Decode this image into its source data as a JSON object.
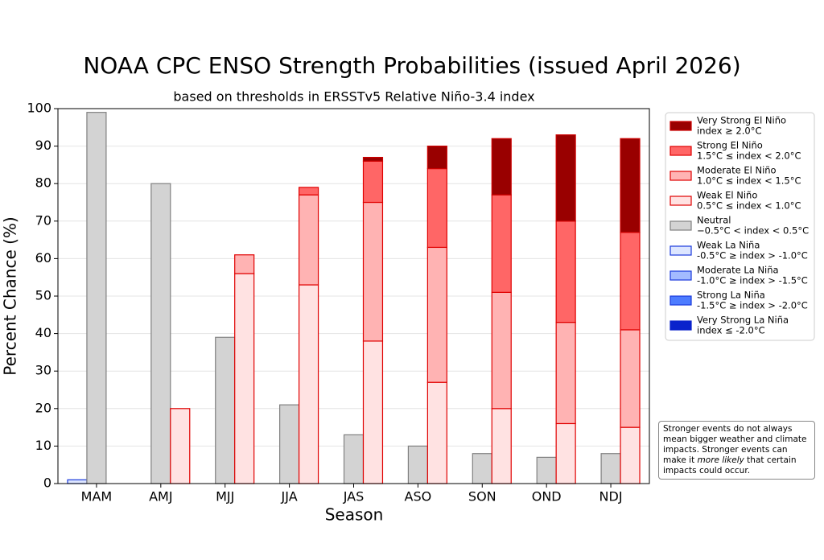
{
  "chart_data": {
    "type": "stacked-grouped-bar",
    "title": "NOAA CPC ENSO Strength Probabilities (issued April 2026)",
    "subtitle": "based on thresholds in ERSSTv5 Relative Niño-3.4 index",
    "x_label": "Season",
    "y_label": "Percent Chance (%)",
    "categories": [
      "MAM",
      "AMJ",
      "MJJ",
      "JJA",
      "JAS",
      "ASO",
      "SON",
      "OND",
      "NDJ"
    ],
    "ylim": [
      0,
      100
    ],
    "yticks": [
      0,
      10,
      20,
      30,
      40,
      50,
      60,
      70,
      80,
      90,
      100
    ],
    "grid": true,
    "stacks": [
      "La Niña",
      "Neutral",
      "El Niño"
    ],
    "series": [
      {
        "name": "Very Strong El Niño",
        "threshold": "index ≥ 2.0°C",
        "stack": "El Niño",
        "color": "#990000",
        "edgecolor": "#cc0000",
        "values": [
          0,
          0,
          0,
          0,
          1,
          6,
          15,
          23,
          25
        ]
      },
      {
        "name": "Strong El Niño",
        "threshold": "1.5°C ≤ index < 2.0°C",
        "stack": "El Niño",
        "color": "#ff6666",
        "edgecolor": "#e00000",
        "values": [
          0,
          0,
          0,
          2,
          11,
          21,
          26,
          27,
          26
        ]
      },
      {
        "name": "Moderate El Niño",
        "threshold": "1.0°C ≤ index < 1.5°C",
        "stack": "El Niño",
        "color": "#ffb3b3",
        "edgecolor": "#e00000",
        "values": [
          0,
          0,
          5,
          24,
          37,
          36,
          31,
          27,
          26
        ]
      },
      {
        "name": "Weak El Niño",
        "threshold": "0.5°C ≤ index < 1.0°C",
        "stack": "El Niño",
        "color": "#ffe2e2",
        "edgecolor": "#e00000",
        "values": [
          0,
          20,
          56,
          53,
          38,
          27,
          20,
          16,
          15
        ]
      },
      {
        "name": "Neutral",
        "threshold": "−0.5°C < index < 0.5°C",
        "stack": "Neutral",
        "color": "#d3d3d3",
        "edgecolor": "#808080",
        "values": [
          99,
          80,
          39,
          21,
          13,
          10,
          8,
          7,
          8
        ]
      },
      {
        "name": "Weak La Niña",
        "threshold": "-0.5°C ≥ index > -1.0°C",
        "stack": "La Niña",
        "color": "#dde6ff",
        "edgecolor": "#1a3adb",
        "values": [
          1,
          0,
          0,
          0,
          0,
          0,
          0,
          0,
          0
        ]
      },
      {
        "name": "Moderate La Niña",
        "threshold": "-1.0°C ≥ index > -1.5°C",
        "stack": "La Niña",
        "color": "#a3bbff",
        "edgecolor": "#1a3adb",
        "values": [
          0,
          0,
          0,
          0,
          0,
          0,
          0,
          0,
          0
        ]
      },
      {
        "name": "Strong La Niña",
        "threshold": "-1.5°C ≥ index > -2.0°C",
        "stack": "La Niña",
        "color": "#4d7cff",
        "edgecolor": "#1a3adb",
        "values": [
          0,
          0,
          0,
          0,
          0,
          0,
          0,
          0,
          0
        ]
      },
      {
        "name": "Very Strong La Niña",
        "threshold": "index ≤ -2.0°C",
        "stack": "La Niña",
        "color": "#0a22cc",
        "edgecolor": "#0a22cc",
        "values": [
          0,
          0,
          0,
          0,
          0,
          0,
          0,
          0,
          0
        ]
      }
    ],
    "note": [
      "Stronger events do not always mean bigger weather and climate impacts. Stronger events can make it ",
      "more likely",
      " that certain impacts could occur."
    ]
  }
}
